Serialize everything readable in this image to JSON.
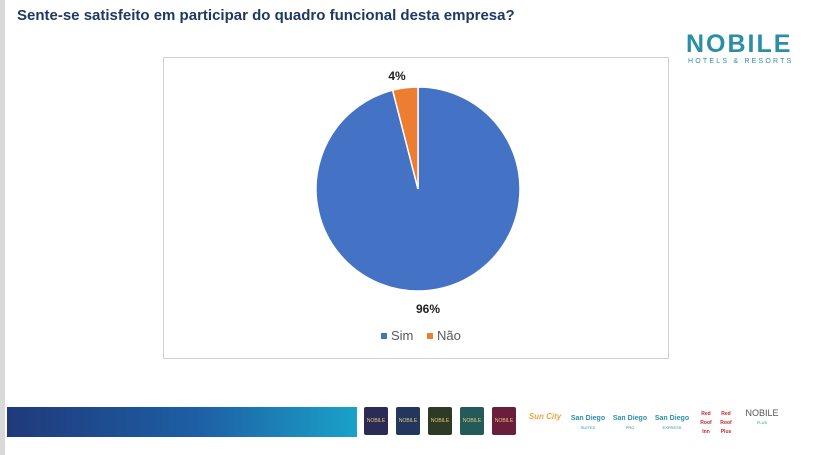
{
  "title": "Sente-se satisfeito em participar do quadro funcional desta empresa?",
  "logo": {
    "name": "NOBILE",
    "tagline": "HOTELS & RESORTS"
  },
  "colors": {
    "sim": "#4472c4",
    "nao": "#ed7d31",
    "title": "#1f3864",
    "brand": "#2a8fa6"
  },
  "chart_data": {
    "type": "pie",
    "categories": [
      "Sim",
      "Não"
    ],
    "values": [
      96,
      4
    ],
    "data_labels": [
      "96%",
      "4%"
    ],
    "legend": "bottom"
  },
  "brands": [
    {
      "label": "NOBILE Grand",
      "color": "#2b2b55"
    },
    {
      "label": "NOBILE Suítes",
      "color": "#23365e"
    },
    {
      "label": "NOBILE Inn",
      "color": "#2d3a25"
    },
    {
      "label": "NOBILE Executive",
      "color": "#245a5a"
    },
    {
      "label": "NOBILE Resort",
      "color": "#6b1e3c"
    },
    {
      "label": "Sun City"
    },
    {
      "label": "San Diego",
      "sub": "SUITES"
    },
    {
      "label": "San Diego",
      "sub": "PRO"
    },
    {
      "label": "San Diego",
      "sub": "EXPRESS"
    },
    {
      "label": "Red Roof Inn"
    },
    {
      "label": "Red Roof Plus"
    },
    {
      "label": "NOBILE",
      "sub": "PLUS"
    }
  ]
}
